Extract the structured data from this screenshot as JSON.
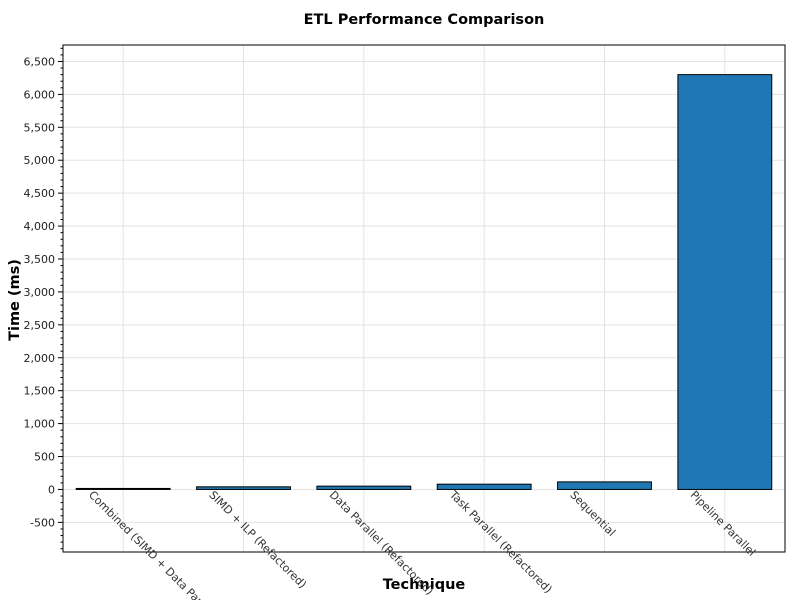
{
  "chart_data": {
    "type": "bar",
    "title": "ETL Performance Comparison",
    "xlabel": "Technique",
    "ylabel": "Time (ms)",
    "categories": [
      "Combined (SIMD + Data Parallel)",
      "SIMD + ILP (Refactored)",
      "Data Parallel (Refactored)",
      "Task Parallel (Refactored)",
      "Sequential",
      "Pipeline Parallel"
    ],
    "values": [
      15,
      40,
      50,
      80,
      115,
      6300
    ],
    "ylim": [
      -950,
      6750
    ],
    "yticks": [
      -500,
      0,
      500,
      1000,
      1500,
      2000,
      2500,
      3000,
      3500,
      4000,
      4500,
      5000,
      5500,
      6000,
      6500
    ],
    "grid": true,
    "legend": "none",
    "bar_color": "#1f77b4",
    "bar_edge_color": "#000000"
  }
}
